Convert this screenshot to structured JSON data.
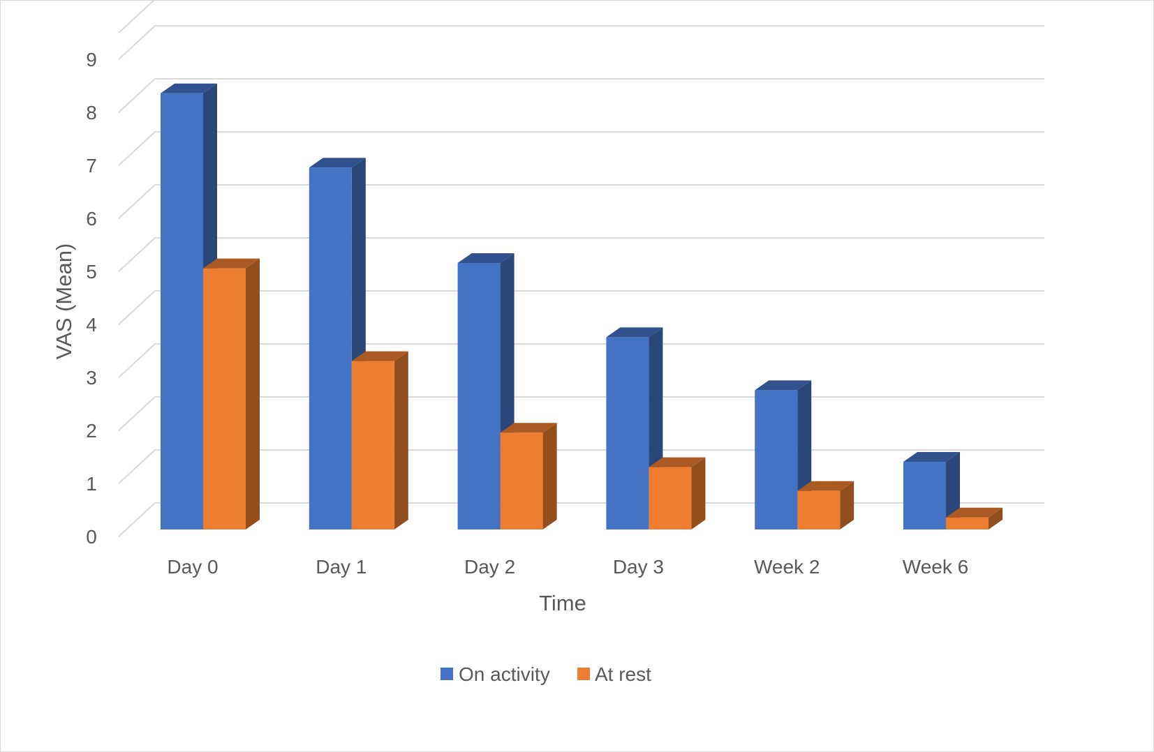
{
  "chart_data": {
    "type": "bar",
    "style": "3d-clustered-column",
    "title": "",
    "xlabel": "Time",
    "ylabel": "VAS (Mean)",
    "categories": [
      "Day 0",
      "Day 1",
      "Day 2",
      "Day 3",
      "Week 2",
      "Week 6"
    ],
    "ylim": [
      0,
      9
    ],
    "yticks": [
      0,
      1,
      2,
      3,
      4,
      5,
      6,
      7,
      8,
      9
    ],
    "grid": true,
    "legend_position": "bottom",
    "series": [
      {
        "name": "On activity",
        "color": "#4472c4",
        "values": [
          8.2,
          6.8,
          5.0,
          3.6,
          2.6,
          1.25
        ]
      },
      {
        "name": "At rest",
        "color": "#ed7d31",
        "values": [
          4.9,
          3.15,
          1.8,
          1.15,
          0.7,
          0.2
        ]
      }
    ]
  }
}
